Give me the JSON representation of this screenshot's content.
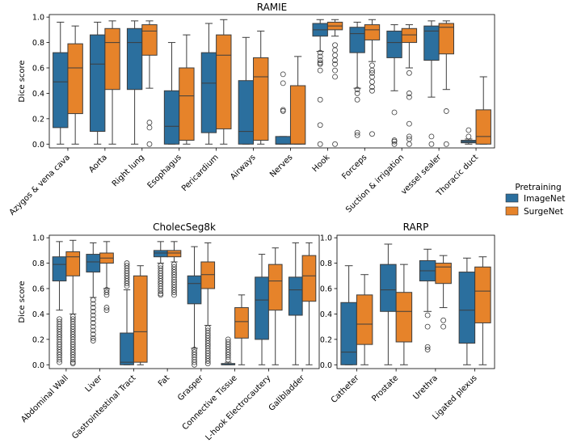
{
  "legend": {
    "title": "Pretraining",
    "position": "right",
    "items": [
      {
        "name": "ImageNet",
        "color": "#2b6f9e"
      },
      {
        "name": "SurgeNet",
        "color": "#e6832a"
      }
    ]
  },
  "chart_data": [
    {
      "type": "box",
      "title": "RAMIE",
      "ylabel": "Dice score",
      "xlabel": "",
      "ylim": [
        -0.03,
        1.02
      ],
      "yticks": [
        "0.0",
        "0.2",
        "0.4",
        "0.6",
        "0.8",
        "1.0"
      ],
      "categories": [
        "Azygos & vena cava",
        "Aorta",
        "Right lung",
        "Esophagus",
        "Pericardium",
        "Airways",
        "Nerves",
        "Hook",
        "Forceps",
        "Suction & irrigation",
        "vessel sealer",
        "Thoracic duct"
      ],
      "series": [
        {
          "name": "ImageNet",
          "boxes": [
            {
              "whislo": 0.0,
              "q1": 0.13,
              "med": 0.49,
              "q3": 0.72,
              "whishi": 0.96,
              "fliers": []
            },
            {
              "whislo": 0.0,
              "q1": 0.1,
              "med": 0.63,
              "q3": 0.86,
              "whishi": 0.96,
              "fliers": []
            },
            {
              "whislo": 0.0,
              "q1": 0.43,
              "med": 0.8,
              "q3": 0.91,
              "whishi": 0.97,
              "fliers": []
            },
            {
              "whislo": 0.0,
              "q1": 0.0,
              "med": 0.14,
              "q3": 0.42,
              "whishi": 0.8,
              "fliers": []
            },
            {
              "whislo": 0.0,
              "q1": 0.09,
              "med": 0.48,
              "q3": 0.72,
              "whishi": 0.95,
              "fliers": []
            },
            {
              "whislo": 0.0,
              "q1": 0.0,
              "med": 0.1,
              "q3": 0.5,
              "whishi": 0.84,
              "fliers": []
            },
            {
              "whislo": 0.0,
              "q1": 0.0,
              "med": 0.0,
              "q3": 0.06,
              "whishi": 0.06,
              "fliers": [
                0.55,
                0.48,
                0.27,
                0.26
              ]
            },
            {
              "whislo": 0.73,
              "q1": 0.85,
              "med": 0.9,
              "q3": 0.95,
              "whishi": 0.98,
              "fliers": [
                0.72,
                0.69,
                0.66,
                0.64,
                0.63,
                0.58,
                0.35,
                0.15,
                0.0
              ]
            },
            {
              "whislo": 0.44,
              "q1": 0.72,
              "med": 0.87,
              "q3": 0.92,
              "whishi": 0.96,
              "fliers": [
                0.43,
                0.4,
                0.35,
                0.09,
                0.07
              ]
            },
            {
              "whislo": 0.42,
              "q1": 0.68,
              "med": 0.8,
              "q3": 0.89,
              "whishi": 0.94,
              "fliers": [
                0.25,
                0.03,
                0.02,
                0.0
              ]
            },
            {
              "whislo": 0.37,
              "q1": 0.66,
              "med": 0.89,
              "q3": 0.93,
              "whishi": 0.97,
              "fliers": [
                0.06,
                0.0
              ]
            },
            {
              "whislo": 0.0,
              "q1": 0.01,
              "med": 0.02,
              "q3": 0.03,
              "whishi": 0.04,
              "fliers": [
                0.11,
                0.06
              ]
            }
          ]
        },
        {
          "name": "SurgeNet",
          "boxes": [
            {
              "whislo": 0.0,
              "q1": 0.24,
              "med": 0.6,
              "q3": 0.79,
              "whishi": 0.93,
              "fliers": []
            },
            {
              "whislo": 0.0,
              "q1": 0.43,
              "med": 0.8,
              "q3": 0.91,
              "whishi": 0.97,
              "fliers": []
            },
            {
              "whislo": 0.44,
              "q1": 0.7,
              "med": 0.89,
              "q3": 0.94,
              "whishi": 0.97,
              "fliers": [
                0.17,
                0.13,
                0.0
              ]
            },
            {
              "whislo": 0.0,
              "q1": 0.03,
              "med": 0.38,
              "q3": 0.6,
              "whishi": 0.86,
              "fliers": []
            },
            {
              "whislo": 0.0,
              "q1": 0.12,
              "med": 0.7,
              "q3": 0.86,
              "whishi": 0.98,
              "fliers": []
            },
            {
              "whislo": 0.0,
              "q1": 0.03,
              "med": 0.53,
              "q3": 0.68,
              "whishi": 0.89,
              "fliers": []
            },
            {
              "whislo": 0.0,
              "q1": 0.0,
              "med": 0.0,
              "q3": 0.46,
              "whishi": 0.69,
              "fliers": []
            },
            {
              "whislo": 0.85,
              "q1": 0.9,
              "med": 0.93,
              "q3": 0.96,
              "whishi": 0.98,
              "fliers": [
                0.78,
                0.74,
                0.7,
                0.66,
                0.63,
                0.58,
                0.53,
                0.0
              ]
            },
            {
              "whislo": 0.65,
              "q1": 0.82,
              "med": 0.9,
              "q3": 0.94,
              "whishi": 0.98,
              "fliers": [
                0.62,
                0.58,
                0.56,
                0.53,
                0.49,
                0.45,
                0.42,
                0.08
              ]
            },
            {
              "whislo": 0.6,
              "q1": 0.8,
              "med": 0.86,
              "q3": 0.91,
              "whishi": 0.94,
              "fliers": [
                0.56,
                0.4,
                0.37,
                0.16,
                0.06,
                0.04,
                0.0
              ]
            },
            {
              "whislo": 0.43,
              "q1": 0.71,
              "med": 0.92,
              "q3": 0.95,
              "whishi": 0.97,
              "fliers": [
                0.26,
                0.0
              ]
            },
            {
              "whislo": 0.0,
              "q1": 0.0,
              "med": 0.06,
              "q3": 0.27,
              "whishi": 0.53,
              "fliers": []
            }
          ]
        }
      ]
    },
    {
      "type": "box",
      "title": "CholecSeg8k",
      "ylabel": "Dice score",
      "xlabel": "",
      "ylim": [
        -0.03,
        1.02
      ],
      "yticks": [
        "0.0",
        "0.2",
        "0.4",
        "0.6",
        "0.8",
        "1.0"
      ],
      "categories": [
        "Abdominal Wall",
        "Liver",
        "Gastrointestinal Tract",
        "Fat",
        "Grasper",
        "Connective Tissue",
        "L-hook Electrocautery",
        "Gallbladder"
      ],
      "series": [
        {
          "name": "ImageNet",
          "boxes": [
            {
              "whislo": 0.43,
              "q1": 0.66,
              "med": 0.79,
              "q3": 0.85,
              "whishi": 0.97,
              "fliers": [
                0.36,
                0.34,
                0.32,
                0.3,
                0.28,
                0.26,
                0.24,
                0.22,
                0.2,
                0.18,
                0.16,
                0.14,
                0.12,
                0.1,
                0.08,
                0.06,
                0.04,
                0.02
              ]
            },
            {
              "whislo": 0.53,
              "q1": 0.73,
              "med": 0.81,
              "q3": 0.87,
              "whishi": 0.96,
              "fliers": [
                0.51,
                0.48,
                0.45,
                0.42,
                0.39,
                0.36,
                0.33,
                0.3,
                0.27,
                0.24,
                0.21,
                0.19
              ]
            },
            {
              "whislo": 0.0,
              "q1": 0.0,
              "med": 0.02,
              "q3": 0.25,
              "whishi": 0.59,
              "fliers": [
                0.8,
                0.78,
                0.76,
                0.74,
                0.72,
                0.7,
                0.68,
                0.66,
                0.64,
                0.62
              ]
            },
            {
              "whislo": 0.8,
              "q1": 0.85,
              "med": 0.88,
              "q3": 0.9,
              "whishi": 0.97,
              "fliers": [
                0.78,
                0.76,
                0.74,
                0.72,
                0.7,
                0.68,
                0.66,
                0.64,
                0.62,
                0.6,
                0.58,
                0.56,
                0.55
              ]
            },
            {
              "whislo": 0.13,
              "q1": 0.48,
              "med": 0.64,
              "q3": 0.7,
              "whishi": 0.93,
              "fliers": [
                0.12,
                0.1,
                0.08,
                0.06,
                0.04,
                0.02,
                0.0
              ]
            },
            {
              "whislo": 0.0,
              "q1": 0.0,
              "med": 0.0,
              "q3": 0.01,
              "whishi": 0.02,
              "fliers": [
                0.2,
                0.18,
                0.16,
                0.14,
                0.12,
                0.1,
                0.08,
                0.06,
                0.04
              ]
            },
            {
              "whislo": 0.0,
              "q1": 0.2,
              "med": 0.51,
              "q3": 0.69,
              "whishi": 0.87,
              "fliers": []
            },
            {
              "whislo": 0.0,
              "q1": 0.39,
              "med": 0.59,
              "q3": 0.69,
              "whishi": 0.96,
              "fliers": []
            }
          ]
        },
        {
          "name": "SurgeNet",
          "boxes": [
            {
              "whislo": 0.4,
              "q1": 0.7,
              "med": 0.85,
              "q3": 0.89,
              "whishi": 0.98,
              "fliers": [
                0.38,
                0.36,
                0.34,
                0.32,
                0.3,
                0.28,
                0.26,
                0.24,
                0.22,
                0.2,
                0.18,
                0.16,
                0.14,
                0.12,
                0.1,
                0.08,
                0.06,
                0.04,
                0.02,
                0.01
              ]
            },
            {
              "whislo": 0.6,
              "q1": 0.8,
              "med": 0.84,
              "q3": 0.88,
              "whishi": 0.97,
              "fliers": [
                0.59,
                0.57,
                0.55,
                0.45,
                0.43
              ]
            },
            {
              "whislo": 0.0,
              "q1": 0.02,
              "med": 0.26,
              "q3": 0.7,
              "whishi": 0.78,
              "fliers": []
            },
            {
              "whislo": 0.81,
              "q1": 0.85,
              "med": 0.88,
              "q3": 0.9,
              "whishi": 0.97,
              "fliers": [
                0.79,
                0.77,
                0.75,
                0.73,
                0.71,
                0.69,
                0.67,
                0.65,
                0.63,
                0.61,
                0.59,
                0.57,
                0.55
              ]
            },
            {
              "whislo": 0.31,
              "q1": 0.6,
              "med": 0.71,
              "q3": 0.81,
              "whishi": 0.96,
              "fliers": [
                0.29,
                0.27,
                0.25,
                0.23,
                0.21,
                0.19,
                0.17,
                0.15,
                0.13,
                0.11,
                0.09,
                0.07,
                0.05,
                0.03,
                0.01
              ]
            },
            {
              "whislo": 0.0,
              "q1": 0.21,
              "med": 0.34,
              "q3": 0.45,
              "whishi": 0.55,
              "fliers": []
            },
            {
              "whislo": 0.0,
              "q1": 0.43,
              "med": 0.66,
              "q3": 0.79,
              "whishi": 0.92,
              "fliers": []
            },
            {
              "whislo": 0.0,
              "q1": 0.5,
              "med": 0.7,
              "q3": 0.86,
              "whishi": 0.96,
              "fliers": []
            }
          ]
        }
      ]
    },
    {
      "type": "box",
      "title": "RARP",
      "ylabel": "",
      "xlabel": "",
      "ylim": [
        -0.03,
        1.02
      ],
      "yticks": [
        "0.0",
        "0.2",
        "0.4",
        "0.6",
        "0.8",
        "1.0"
      ],
      "categories": [
        "Catheter",
        "Prostate",
        "Urethra",
        "Ligated plexus"
      ],
      "series": [
        {
          "name": "ImageNet",
          "boxes": [
            {
              "whislo": 0.0,
              "q1": 0.0,
              "med": 0.1,
              "q3": 0.49,
              "whishi": 0.78,
              "fliers": []
            },
            {
              "whislo": 0.0,
              "q1": 0.42,
              "med": 0.59,
              "q3": 0.79,
              "whishi": 0.95,
              "fliers": []
            },
            {
              "whislo": 0.42,
              "q1": 0.66,
              "med": 0.74,
              "q3": 0.82,
              "whishi": 0.91,
              "fliers": [
                0.39,
                0.3,
                0.14,
                0.12
              ]
            },
            {
              "whislo": 0.0,
              "q1": 0.17,
              "med": 0.43,
              "q3": 0.73,
              "whishi": 0.84,
              "fliers": []
            }
          ]
        },
        {
          "name": "SurgeNet",
          "boxes": [
            {
              "whislo": 0.0,
              "q1": 0.16,
              "med": 0.32,
              "q3": 0.55,
              "whishi": 0.71,
              "fliers": []
            },
            {
              "whislo": 0.0,
              "q1": 0.18,
              "med": 0.42,
              "q3": 0.57,
              "whishi": 0.79,
              "fliers": []
            },
            {
              "whislo": 0.45,
              "q1": 0.64,
              "med": 0.77,
              "q3": 0.8,
              "whishi": 0.86,
              "fliers": [
                0.35,
                0.3
              ]
            },
            {
              "whislo": 0.0,
              "q1": 0.33,
              "med": 0.58,
              "q3": 0.77,
              "whishi": 0.85,
              "fliers": []
            }
          ]
        }
      ]
    }
  ]
}
